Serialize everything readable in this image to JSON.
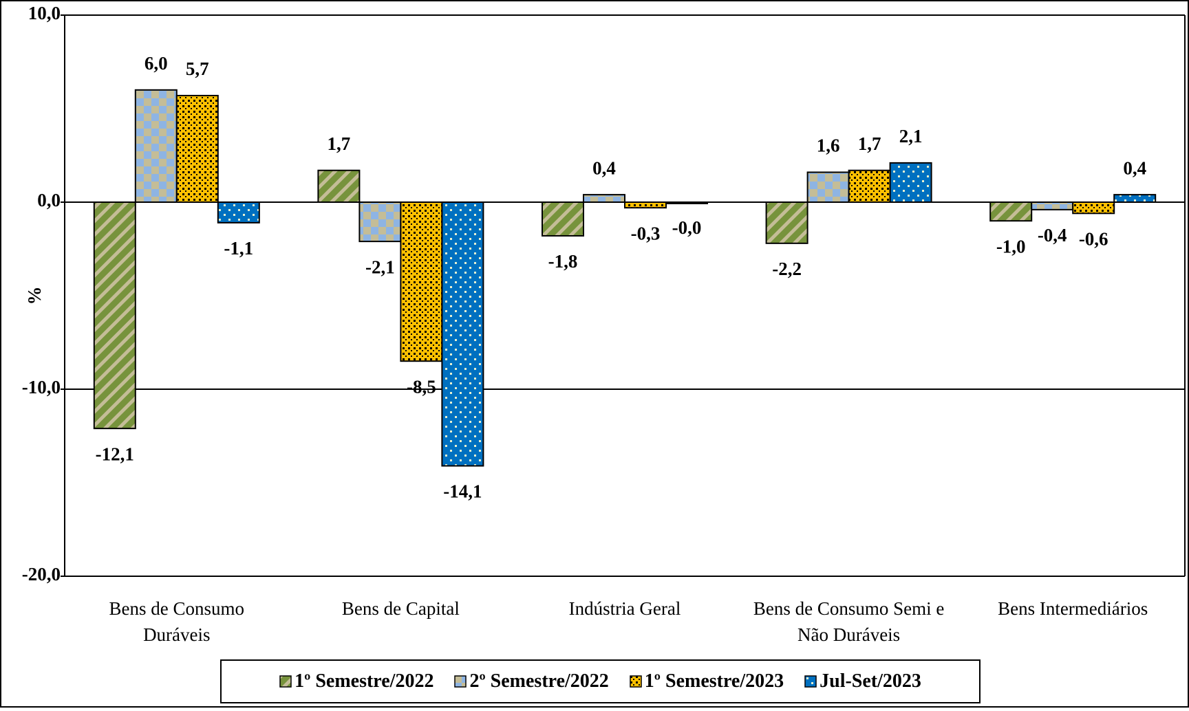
{
  "chart_data": {
    "type": "bar",
    "ylabel": "%",
    "categories": [
      "Bens de Consumo Duráveis",
      "Bens de Capital",
      "Indústria Geral",
      "Bens de Consumo Semi e Não Duráveis",
      "Bens Intermediários"
    ],
    "series": [
      {
        "name": "1º Semestre/2022",
        "color": "#77933c",
        "values": [
          -12.1,
          1.7,
          -1.8,
          -2.2,
          -1.0
        ],
        "value_labels": [
          "-12,1",
          "1,7",
          "-1,8",
          "-2,2",
          "-1,0"
        ]
      },
      {
        "name": "2º Semestre/2022",
        "color": "#8eb4e3",
        "values": [
          6.0,
          -2.1,
          0.4,
          1.6,
          -0.4
        ],
        "value_labels": [
          "6,0",
          "-2,1",
          "0,4",
          "1,6",
          "-0,4"
        ]
      },
      {
        "name": "1º Semestre/2023",
        "color": "#ffc000",
        "values": [
          5.7,
          -8.5,
          -0.3,
          1.7,
          -0.6
        ],
        "value_labels": [
          "5,7",
          "-8,5",
          "-0,3",
          "1,7",
          "-0,6"
        ]
      },
      {
        "name": "Jul-Set/2023",
        "color": "#0070c0",
        "values": [
          -1.1,
          -14.1,
          0.0,
          2.1,
          0.4
        ],
        "value_labels": [
          "-1,1",
          "-14,1",
          "-0,0",
          "2,1",
          "0,4"
        ]
      }
    ],
    "ylim": [
      -20,
      10
    ],
    "yticks": [
      {
        "value": -20,
        "label": "-20,0"
      },
      {
        "value": -10,
        "label": "-10,0"
      },
      {
        "value": 0,
        "label": "0,0"
      },
      {
        "value": 10,
        "label": "10,0"
      }
    ],
    "grid": true
  }
}
